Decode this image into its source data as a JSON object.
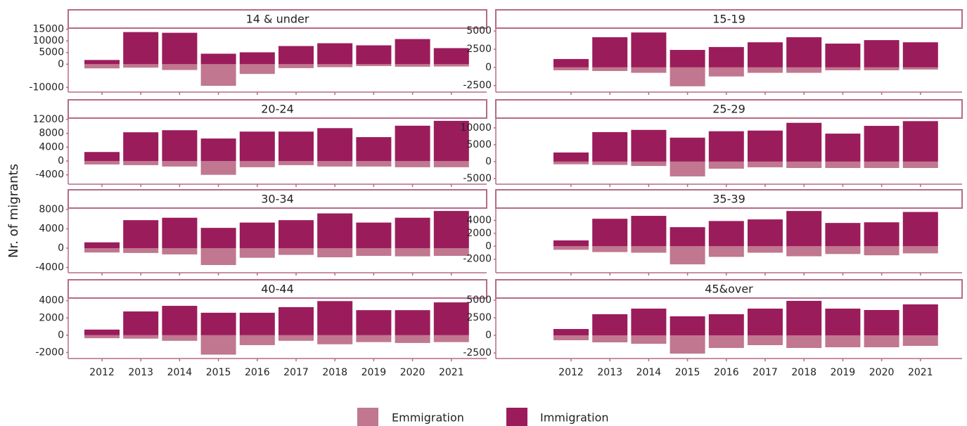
{
  "y_axis_label": "Nr. of migrants",
  "chart_data": [
    {
      "type": "bar",
      "title": "14 & under",
      "categories": [
        "2012",
        "2013",
        "2014",
        "2015",
        "2016",
        "2017",
        "2018",
        "2019",
        "2020",
        "2021"
      ],
      "series": [
        {
          "name": "Emmigration",
          "color": "#c0778f",
          "values": [
            -1800,
            -1500,
            -2500,
            -9300,
            -4200,
            -1700,
            -1300,
            -800,
            -1100,
            -1000
          ]
        },
        {
          "name": "Immigration",
          "color": "#9b1c5b",
          "values": [
            1800,
            13800,
            13500,
            4500,
            5100,
            7800,
            9000,
            8100,
            10800,
            6900
          ]
        }
      ],
      "ylim": [
        -12000,
        15500
      ],
      "yticks": [
        -10000,
        0,
        5000,
        10000,
        15000
      ]
    },
    {
      "type": "bar",
      "title": "15-19",
      "categories": [
        "2012",
        "2013",
        "2014",
        "2015",
        "2016",
        "2017",
        "2018",
        "2019",
        "2020",
        "2021"
      ],
      "series": [
        {
          "name": "Emmigration",
          "color": "#c0778f",
          "values": [
            -400,
            -500,
            -750,
            -2600,
            -1250,
            -750,
            -750,
            -400,
            -400,
            -300
          ]
        },
        {
          "name": "Immigration",
          "color": "#9b1c5b",
          "values": [
            1150,
            4150,
            4800,
            2400,
            2800,
            3450,
            4150,
            3270,
            3750,
            3450
          ]
        }
      ],
      "ylim": [
        -3400,
        5400
      ],
      "yticks": [
        -2500,
        0,
        2500,
        5000
      ]
    },
    {
      "type": "bar",
      "title": "20-24",
      "categories": [
        "2012",
        "2013",
        "2014",
        "2015",
        "2016",
        "2017",
        "2018",
        "2019",
        "2020",
        "2021"
      ],
      "series": [
        {
          "name": "Emmigration",
          "color": "#c0778f",
          "values": [
            -1000,
            -1200,
            -1600,
            -4000,
            -1800,
            -1200,
            -1600,
            -1600,
            -1800,
            -1800
          ]
        },
        {
          "name": "Immigration",
          "color": "#9b1c5b",
          "values": [
            2600,
            8300,
            8900,
            6500,
            8500,
            8500,
            9500,
            6900,
            10200,
            11600
          ]
        }
      ],
      "ylim": [
        -6700,
        12400
      ],
      "yticks": [
        -4000,
        0,
        4000,
        8000,
        12000
      ]
    },
    {
      "type": "bar",
      "title": "25-29",
      "categories": [
        "2012",
        "2013",
        "2014",
        "2015",
        "2016",
        "2017",
        "2018",
        "2019",
        "2020",
        "2021"
      ],
      "series": [
        {
          "name": "Emmigration",
          "color": "#c0778f",
          "values": [
            -800,
            -1000,
            -1300,
            -4400,
            -2100,
            -1700,
            -1900,
            -1900,
            -1900,
            -1900
          ]
        },
        {
          "name": "Immigration",
          "color": "#9b1c5b",
          "values": [
            2700,
            8750,
            9400,
            7100,
            9000,
            9200,
            11500,
            8300,
            10600,
            12000
          ]
        }
      ],
      "ylim": [
        -6700,
        12900
      ],
      "yticks": [
        -5000,
        0,
        5000,
        10000
      ]
    },
    {
      "type": "bar",
      "title": "30-34",
      "categories": [
        "2012",
        "2013",
        "2014",
        "2015",
        "2016",
        "2017",
        "2018",
        "2019",
        "2020",
        "2021"
      ],
      "series": [
        {
          "name": "Emmigration",
          "color": "#c0778f",
          "values": [
            -900,
            -1000,
            -1300,
            -3500,
            -2000,
            -1400,
            -1900,
            -1600,
            -1700,
            -1600
          ]
        },
        {
          "name": "Immigration",
          "color": "#9b1c5b",
          "values": [
            1200,
            5800,
            6300,
            4200,
            5300,
            5800,
            7200,
            5300,
            6300,
            7700
          ]
        }
      ],
      "ylim": [
        -5100,
        8300
      ],
      "yticks": [
        -4000,
        0,
        4000,
        8000
      ]
    },
    {
      "type": "bar",
      "title": "35-39",
      "categories": [
        "2012",
        "2013",
        "2014",
        "2015",
        "2016",
        "2017",
        "2018",
        "2019",
        "2020",
        "2021"
      ],
      "series": [
        {
          "name": "Emmigration",
          "color": "#c0778f",
          "values": [
            -550,
            -900,
            -1000,
            -2800,
            -1650,
            -1000,
            -1550,
            -1200,
            -1400,
            -1100
          ]
        },
        {
          "name": "Immigration",
          "color": "#9b1c5b",
          "values": [
            900,
            4250,
            4700,
            2950,
            3900,
            4150,
            5450,
            3600,
            3700,
            5300
          ]
        }
      ],
      "ylim": [
        -4100,
        5900
      ],
      "yticks": [
        -2000,
        0,
        2000,
        4000
      ]
    },
    {
      "type": "bar",
      "title": "40-44",
      "categories": [
        "2012",
        "2013",
        "2014",
        "2015",
        "2016",
        "2017",
        "2018",
        "2019",
        "2020",
        "2021"
      ],
      "series": [
        {
          "name": "Emmigration",
          "color": "#c0778f",
          "values": [
            -350,
            -400,
            -650,
            -2250,
            -1150,
            -650,
            -1050,
            -800,
            -900,
            -800
          ]
        },
        {
          "name": "Immigration",
          "color": "#9b1c5b",
          "values": [
            650,
            2750,
            3400,
            2600,
            2600,
            3250,
            3950,
            2900,
            2900,
            3800
          ]
        }
      ],
      "ylim": [
        -2700,
        4300
      ],
      "yticks": [
        -2000,
        0,
        2000,
        4000
      ],
      "show_x_labels": true
    },
    {
      "type": "bar",
      "title": "45&over",
      "categories": [
        "2012",
        "2013",
        "2014",
        "2015",
        "2016",
        "2017",
        "2018",
        "2019",
        "2020",
        "2021"
      ],
      "series": [
        {
          "name": "Emmigration",
          "color": "#c0778f",
          "values": [
            -700,
            -1000,
            -1200,
            -2600,
            -1800,
            -1400,
            -1800,
            -1700,
            -1700,
            -1500
          ]
        },
        {
          "name": "Immigration",
          "color": "#9b1c5b",
          "values": [
            900,
            3000,
            3800,
            2700,
            3000,
            3800,
            4900,
            3800,
            3600,
            4400
          ]
        }
      ],
      "ylim": [
        -3300,
        5300
      ],
      "yticks": [
        -2500,
        0,
        2500,
        5000
      ],
      "show_x_labels": true
    }
  ]
}
